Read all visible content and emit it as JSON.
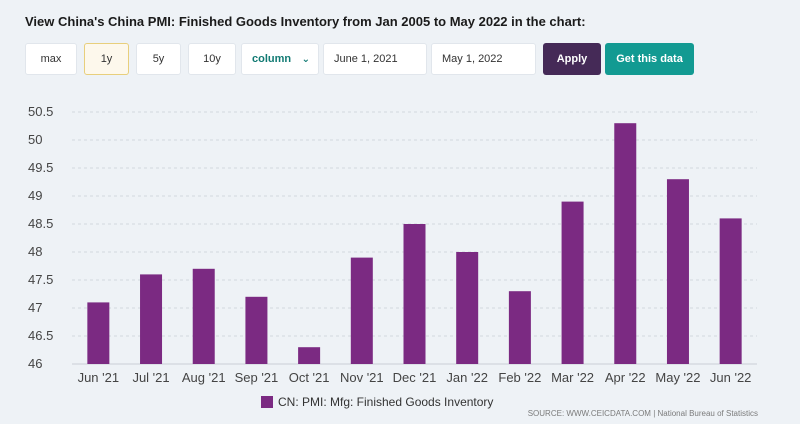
{
  "header": {
    "title": "View China's China PMI: Finished Goods Inventory from Jan 2005 to May 2022 in the chart:"
  },
  "controls": {
    "ranges": [
      {
        "label": "max"
      },
      {
        "label": "1y",
        "active": true
      },
      {
        "label": "5y"
      },
      {
        "label": "10y"
      }
    ],
    "chart_type": "column",
    "start_date": "June 1, 2021",
    "end_date": "May 1, 2022",
    "apply_label": "Apply",
    "get_data_label": "Get this data"
  },
  "chart_data": {
    "type": "bar",
    "categories": [
      "Jun '21",
      "Jul '21",
      "Aug '21",
      "Sep '21",
      "Oct '21",
      "Nov '21",
      "Dec '21",
      "Jan '22",
      "Feb '22",
      "Mar '22",
      "Apr '22",
      "May '22",
      "Jun '22"
    ],
    "series": [
      {
        "name": "CN: PMI: Mfg: Finished Goods Inventory",
        "values": [
          47.1,
          47.6,
          47.7,
          47.2,
          46.3,
          47.9,
          48.5,
          48.0,
          47.3,
          48.9,
          50.3,
          49.3,
          48.6
        ]
      }
    ],
    "ylim": [
      46,
      50.5
    ],
    "yticks": [
      "46",
      "46.5",
      "47",
      "47.5",
      "48",
      "48.5",
      "49",
      "49.5",
      "50",
      "50.5"
    ],
    "grid": true,
    "legend": "bottom",
    "color": "#7b2a82"
  },
  "footer": {
    "source": "SOURCE: WWW.CEICDATA.COM | National Bureau of Statistics"
  }
}
